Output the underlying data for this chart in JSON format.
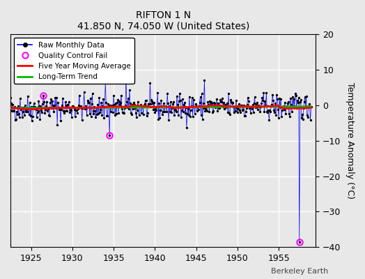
{
  "title": "RIFTON 1 N",
  "subtitle": "41.850 N, 74.050 W (United States)",
  "ylabel": "Temperature Anomaly (°C)",
  "credit": "Berkeley Earth",
  "xlim": [
    1922.5,
    1959.5
  ],
  "ylim": [
    -40,
    20
  ],
  "yticks": [
    -40,
    -30,
    -20,
    -10,
    0,
    10,
    20
  ],
  "xticks": [
    1925,
    1930,
    1935,
    1940,
    1945,
    1950,
    1955
  ],
  "bg_color": "#e8e8e8",
  "grid_color": "white",
  "raw_line_color": "#0000ff",
  "raw_dot_color": "#000000",
  "moving_avg_color": "#ff0000",
  "trend_color": "#00bb00",
  "qc_fail_color": "#ff00ff",
  "seed": 42,
  "start_year": 1922,
  "end_year": 1958,
  "trend_slope": 0.012,
  "trend_intercept": -0.8,
  "noise_std": 1.8,
  "qc_fail_points": [
    {
      "year": 1926.5,
      "value": 2.8
    },
    {
      "year": 1934.5,
      "value": -8.5
    },
    {
      "year": 1957.5,
      "value": -38.5
    }
  ],
  "spike_insertions": [
    {
      "year": 1934.0,
      "value": 6.5
    },
    {
      "year": 1936.5,
      "value": 7.5
    },
    {
      "year": 1946.0,
      "value": 7.0
    },
    {
      "year": 1926.5,
      "value": 2.8
    }
  ]
}
